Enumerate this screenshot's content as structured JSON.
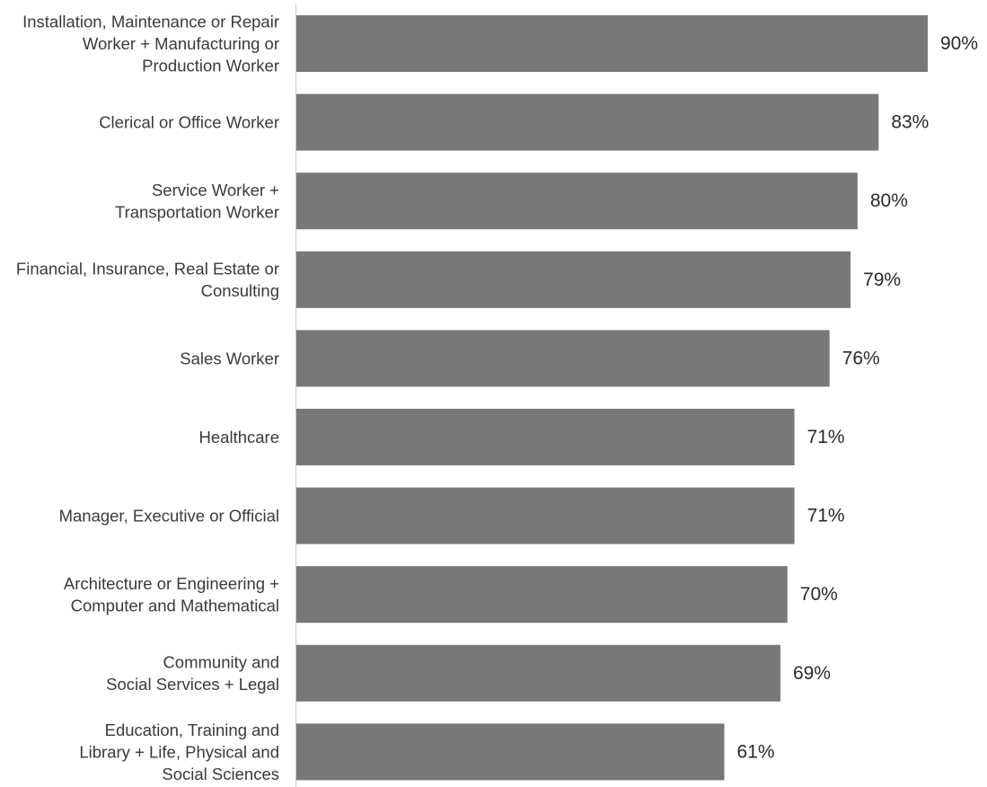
{
  "chart_data": {
    "type": "bar",
    "orientation": "horizontal",
    "title": "",
    "xlabel": "",
    "ylabel": "",
    "xlim": [
      0,
      100
    ],
    "grid": false,
    "legend": "none",
    "bar_color": "#797777",
    "axis_color": "#c8c8c8",
    "categories": [
      [
        "Installation, Maintenance or Repair",
        "Worker + Manufacturing or",
        "Production Worker"
      ],
      [
        "Clerical or Office Worker"
      ],
      [
        "Service Worker +",
        "Transportation Worker"
      ],
      [
        "Financial, Insurance, Real Estate or",
        "Consulting"
      ],
      [
        "Sales Worker"
      ],
      [
        "Healthcare"
      ],
      [
        "Manager, Executive or Official"
      ],
      [
        "Architecture or Engineering +",
        "Computer and Mathematical"
      ],
      [
        "Community and",
        "Social Services + Legal"
      ],
      [
        "Education, Training and",
        "Library + Life, Physical and",
        "Social Sciences"
      ]
    ],
    "values": [
      90,
      83,
      80,
      79,
      76,
      71,
      71,
      70,
      69,
      61
    ],
    "value_labels": [
      "90%",
      "83%",
      "80%",
      "79%",
      "76%",
      "71%",
      "71%",
      "70%",
      "69%",
      "61%"
    ]
  }
}
